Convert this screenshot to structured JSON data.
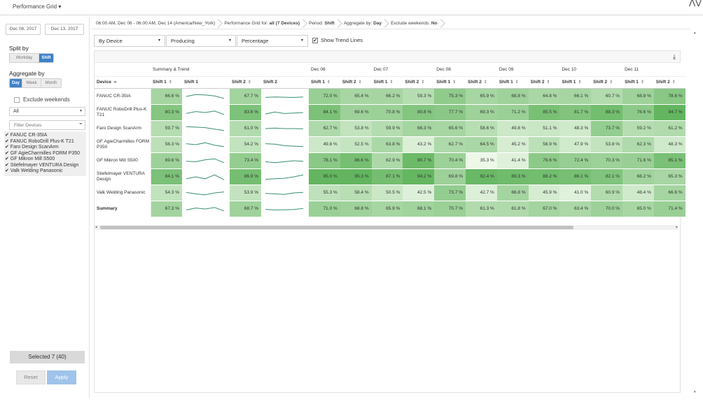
{
  "app": {
    "title": "Performance Grid ▾",
    "corner_icon": "⋀⋁"
  },
  "sidebar": {
    "start_date": "Dec 06, 2017",
    "end_date": "Dec 13, 2017",
    "split_by_label": "Split by",
    "split_options": [
      "Workday",
      "Shift"
    ],
    "split_selected": "Shift",
    "aggregate_label": "Aggregate by",
    "aggregate_options": [
      "Day",
      "Week",
      "Month"
    ],
    "aggregate_selected": "Day",
    "exclude_weekends_label": "Exclude weekends",
    "group_select": "All",
    "filter_placeholder": "Filter Devices",
    "devices": [
      "✔ FANUC CR-35IA",
      "✔ FANUC RoboDrill Plus-K T21",
      "✔ Faro Design ScanArm",
      "✔ GF AgieCharmilles FORM P350",
      "✔ GF Mikron Mill S500",
      "✔ Stiefelmayer VENTURA Design",
      "✔ Valk Welding Panasonic"
    ],
    "selected_label": "Selected 7 (40)",
    "reset_label": "Reset",
    "apply_label": "Apply"
  },
  "breadcrumbs": {
    "range": "06:00 AM, Dec 06 - 06:00 AM, Dec 14",
    "timezone": "(America/New_York)",
    "grid_for_prefix": "Performance Grid for: ",
    "grid_for_value": "all (7 Devices)",
    "period_prefix": "Period: ",
    "period_value": "Shift",
    "aggregate_prefix": "Aggregate by: ",
    "aggregate_value": "Day",
    "exclude_prefix": "Exclude weekends: ",
    "exclude_value": "No"
  },
  "controls": {
    "group_by": "By Device",
    "metric": "Producing",
    "unit": "Percentage",
    "show_trend_lines": "Show Trend Lines",
    "show_trend_checked": true
  },
  "grid": {
    "summary_header": "Summary & Trend",
    "day_headers": [
      "Dec 06",
      "Dec 07",
      "Dec 08",
      "Dec 09",
      "Dec 10",
      "Dec 11"
    ],
    "col_device": "Device",
    "col_shift1": "Shift 1",
    "col_shift2": "Shift 2",
    "sort_icon": "⇕",
    "device_sort_icon": "⏶",
    "rows": [
      {
        "device": "FANUC CR-35IA",
        "s1": "66.6 %",
        "s2": "67.7 %",
        "days": [
          "72.0 %",
          "65.4 %",
          "66.2 %",
          "59.3 %",
          "75.3 %",
          "65.9 %",
          "68.8 %",
          "64.8 %",
          "66.1 %",
          "60.7 %",
          "68.8 %",
          "78.6 %"
        ],
        "spark1": [
          0.5,
          0.7,
          0.65,
          0.55,
          0.3
        ],
        "spark2": [
          0.4,
          0.45,
          0.42,
          0.4,
          0.45
        ]
      },
      {
        "device": "FANUC RoboDrill Plus-K T21",
        "s1": "80.3 %",
        "s2": "83.6 %",
        "days": [
          "84.1 %",
          "69.6 %",
          "70.8 %",
          "80.8 %",
          "77.7 %",
          "69.3 %",
          "71.2 %",
          "85.5 %",
          "81.7 %",
          "88.3 %",
          "76.6 %",
          "94.7 %"
        ],
        "spark1": [
          0.4,
          0.6,
          0.5,
          0.65,
          0.3
        ],
        "spark2": [
          0.35,
          0.55,
          0.4,
          0.45,
          0.5
        ]
      },
      {
        "device": "Faro Design ScanArm",
        "s1": "59.7 %",
        "s2": "61.0 %",
        "days": [
          "62.7 %",
          "53.8 %",
          "59.9 %",
          "66.3 %",
          "65.6 %",
          "58.6 %",
          "49.8 %",
          "51.1 %",
          "48.3 %",
          "73.7 %",
          "59.2 %",
          "61.2 %"
        ],
        "spark1": [
          0.7,
          0.65,
          0.6,
          0.45,
          0.3
        ],
        "spark2": [
          0.5,
          0.55,
          0.5,
          0.5,
          0.48
        ]
      },
      {
        "device": "GF AgieCharmilles FORM P350",
        "s1": "56.3 %",
        "s2": "54.2 %",
        "days": [
          "49.8 %",
          "52.5 %",
          "63.8 %",
          "43.2 %",
          "62.7 %",
          "64.5 %",
          "45.2 %",
          "56.9 %",
          "47.9 %",
          "53.8 %",
          "62.3 %",
          "48.3 %"
        ],
        "spark1": [
          0.6,
          0.5,
          0.7,
          0.45,
          0.3
        ],
        "spark2": [
          0.6,
          0.55,
          0.4,
          0.35,
          0.3
        ]
      },
      {
        "device": "GF Mikron Mill S500",
        "s1": "69.6 %",
        "s2": "73.4 %",
        "days": [
          "78.1 %",
          "86.6 %",
          "62.9 %",
          "90.7 %",
          "70.4 %",
          "35.3 %",
          "41.4 %",
          "76.6 %",
          "72.4 %",
          "70.3 %",
          "71.6 %",
          "85.1 %"
        ],
        "spark1": [
          0.45,
          0.4,
          0.6,
          0.7,
          0.3
        ],
        "spark2": [
          0.4,
          0.3,
          0.4,
          0.5,
          0.45
        ]
      },
      {
        "device": "Stiefelmayer VENTURA Design",
        "s1": "84.1 %",
        "s2": "86.9 %",
        "days": [
          "95.0 %",
          "95.3 %",
          "87.1 %",
          "94.2 %",
          "69.8 %",
          "92.4 %",
          "89.3 %",
          "88.2 %",
          "86.1 %",
          "82.1 %",
          "68.2 %",
          "65.3 %"
        ],
        "spark1": [
          0.3,
          0.5,
          0.3,
          0.7,
          0.2
        ],
        "spark2": [
          0.25,
          0.3,
          0.35,
          0.5,
          0.7
        ]
      },
      {
        "device": "Valk Welding Panasonic",
        "s1": "54.3 %",
        "s2": "53.9 %",
        "days": [
          "55.3 %",
          "58.4 %",
          "50.5 %",
          "42.5 %",
          "73.7 %",
          "42.7 %",
          "66.8 %",
          "45.9 %",
          "41.0 %",
          "60.9 %",
          "48.4 %",
          "66.6 %"
        ],
        "spark1": [
          0.55,
          0.4,
          0.3,
          0.5,
          0.6
        ],
        "spark2": [
          0.45,
          0.4,
          0.35,
          0.5,
          0.55
        ]
      }
    ],
    "summary": {
      "device": "Summary",
      "s1": "67.3 %",
      "s2": "68.7 %",
      "days": [
        "71.0 %",
        "68.8 %",
        "65.9 %",
        "68.1 %",
        "70.7 %",
        "61.3 %",
        "61.8 %",
        "67.0 %",
        "63.4 %",
        "70.0 %",
        "65.0 %",
        "71.4 %"
      ],
      "spark1": [
        0.4,
        0.6,
        0.5,
        0.65,
        0.3
      ],
      "spark2": [
        0.45,
        0.4,
        0.42,
        0.45,
        0.55
      ]
    },
    "colors": {
      "sparkline": "#3a8f6f",
      "heat_low": "#eef8ea",
      "heat_high": "#5eb35a"
    }
  },
  "icons": {
    "download": "⤓",
    "caret": "▾",
    "filter": "⏷",
    "scroll_left": "◂",
    "scroll_right": "▸",
    "scroll_up": "▴",
    "scroll_down": "▾"
  }
}
